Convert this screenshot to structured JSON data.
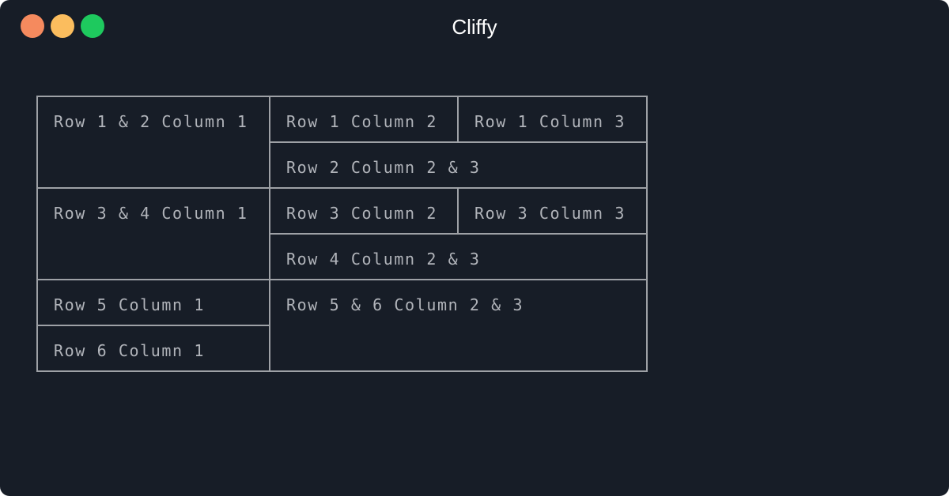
{
  "window": {
    "title": "Cliffy",
    "controls": {
      "close_color": "#f58a5e",
      "minimize_color": "#fbbd5e",
      "maximize_color": "#1ec95e"
    },
    "background": "#171d27"
  },
  "table": {
    "cells": {
      "r1_2_c1": "Row 1 & 2 Column 1",
      "r1_c2": "Row 1 Column 2",
      "r1_c3": "Row 1 Column 3",
      "r2_c2_3": "Row 2 Column 2 & 3",
      "r3_4_c1": "Row 3 & 4 Column 1",
      "r3_c2": "Row 3 Column 2",
      "r3_c3": "Row 3 Column 3",
      "r4_c2_3": "Row 4 Column 2 & 3",
      "r5_c1": "Row 5 Column 1",
      "r5_6_c2_3": "Row 5 & 6 Column 2 & 3",
      "r6_c1": "Row 6 Column 1"
    },
    "border_color": "#9ea1a6",
    "text_color": "#b1b4ba"
  }
}
